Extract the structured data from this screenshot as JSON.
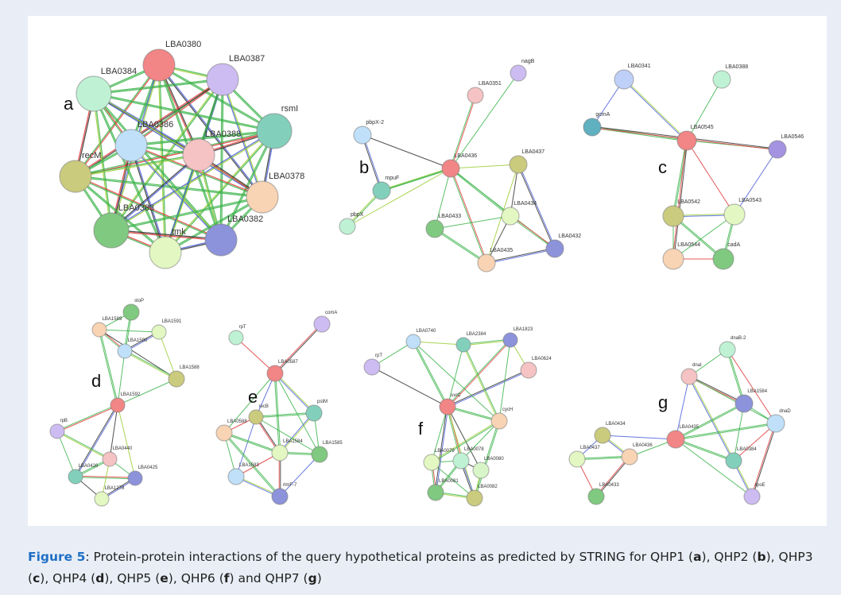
{
  "figure": {
    "panels": [
      {
        "letter": "a",
        "nodes": [
          {
            "label": "LBA0380",
            "color": "#f28585"
          },
          {
            "label": "LBA0387",
            "color": "#cdbcf2"
          },
          {
            "label": "LBA0384",
            "color": "#bff2d4"
          },
          {
            "label": "rsmI",
            "color": "#82d0bb"
          },
          {
            "label": "LBA0386",
            "color": "#bfe0f8"
          },
          {
            "label": "recM",
            "color": "#cbcb7e"
          },
          {
            "label": "LBA0388",
            "color": "#f5c3c3"
          },
          {
            "label": "LBA0378",
            "color": "#f8d3b4"
          },
          {
            "label": "LBA0383",
            "color": "#80c980"
          },
          {
            "label": "tmk",
            "color": "#e2f7c2"
          },
          {
            "label": "LBA0382",
            "color": "#8c93da"
          }
        ]
      },
      {
        "letter": "b",
        "nodes": [
          {
            "label": "nagB",
            "color": "#cdbcf2"
          },
          {
            "label": "LBA0351",
            "color": "#f5c3c3"
          },
          {
            "label": "pbpX-2",
            "color": "#bfe0f8"
          },
          {
            "label": "LBA0436",
            "color": "#f28585"
          },
          {
            "label": "LBA0437",
            "color": "#cbcb7e"
          },
          {
            "label": "mpuF",
            "color": "#82d0bb"
          },
          {
            "label": "pbpX",
            "color": "#bff2d4"
          },
          {
            "label": "LBA0433",
            "color": "#80c980"
          },
          {
            "label": "LBA0434",
            "color": "#e2f7c2"
          },
          {
            "label": "LBA0432",
            "color": "#8c93da"
          },
          {
            "label": "LBA0435",
            "color": "#f8d3b4"
          }
        ]
      },
      {
        "letter": "c",
        "nodes": [
          {
            "label": "LBA0341",
            "color": "#bfd0f8"
          },
          {
            "label": "LBA0388",
            "color": "#bff2d4"
          },
          {
            "label": "gcmA",
            "color": "#5fb0c0"
          },
          {
            "label": "LBA0545",
            "color": "#f28585"
          },
          {
            "label": "LBA0546",
            "color": "#a493e0"
          },
          {
            "label": "LBA0542",
            "color": "#cbcb7e"
          },
          {
            "label": "LBA0543",
            "color": "#e2f7c2"
          },
          {
            "label": "LBA0544",
            "color": "#f8d3b4"
          },
          {
            "label": "cadA",
            "color": "#80c980"
          }
        ]
      },
      {
        "letter": "d",
        "nodes": [
          {
            "label": "stoP",
            "color": "#80c980"
          },
          {
            "label": "LBA1589",
            "color": "#f8d3b4"
          },
          {
            "label": "LBA1591",
            "color": "#e2f7c2"
          },
          {
            "label": "LBA1590",
            "color": "#bfe0f8"
          },
          {
            "label": "LBA1588",
            "color": "#cbcb7e"
          },
          {
            "label": "LBA1592",
            "color": "#f28585"
          },
          {
            "label": "rpB",
            "color": "#cdbcf2"
          },
          {
            "label": "LBA0440",
            "color": "#f5c3c3"
          },
          {
            "label": "LBA0426",
            "color": "#82d0bb"
          },
          {
            "label": "LBA0425",
            "color": "#8c93da"
          },
          {
            "label": "LBA1278",
            "color": "#e2f7c2"
          }
        ]
      },
      {
        "letter": "e",
        "nodes": [
          {
            "label": "rpT",
            "color": "#bff2d4"
          },
          {
            "label": "comA",
            "color": "#cdbcf2"
          },
          {
            "label": "LBA0587",
            "color": "#f28585"
          },
          {
            "label": "recB",
            "color": "#cbcb7e"
          },
          {
            "label": "pstM",
            "color": "#82d0bb"
          },
          {
            "label": "LBA0588",
            "color": "#f8d3b4"
          },
          {
            "label": "LBA1584",
            "color": "#e2f7c2"
          },
          {
            "label": "LBA1585",
            "color": "#80c980"
          },
          {
            "label": "LBA1583",
            "color": "#bfe0f8"
          },
          {
            "label": "rlmF-7",
            "color": "#8c93da"
          }
        ]
      },
      {
        "letter": "f",
        "nodes": [
          {
            "label": "LBA0740",
            "color": "#bfe0f8"
          },
          {
            "label": "LBA2384",
            "color": "#82d0bb"
          },
          {
            "label": "LBA1823",
            "color": "#8c93da"
          },
          {
            "label": "rpT",
            "color": "#cdbcf2"
          },
          {
            "label": "LBA0624",
            "color": "#f5c3c3"
          },
          {
            "label": "uvrC",
            "color": "#f28585"
          },
          {
            "label": "cycH",
            "color": "#f8d3b4"
          },
          {
            "label": "LBA0079",
            "color": "#e2f7c2"
          },
          {
            "label": "LBA0078",
            "color": "#bff2d4"
          },
          {
            "label": "LBA0080",
            "color": "#d8f5c8"
          },
          {
            "label": "LBA0081",
            "color": "#80c980"
          },
          {
            "label": "LBA0082",
            "color": "#cbcb7e"
          }
        ]
      },
      {
        "letter": "g",
        "nodes": [
          {
            "label": "dnaB-2",
            "color": "#bff2d4"
          },
          {
            "label": "dnaI",
            "color": "#f5c3c3"
          },
          {
            "label": "LBA1584",
            "color": "#8c93da"
          },
          {
            "label": "dnaD",
            "color": "#bfe0f8"
          },
          {
            "label": "LBA0434",
            "color": "#cbcb7e"
          },
          {
            "label": "LBA0435",
            "color": "#f28585"
          },
          {
            "label": "LBA0437",
            "color": "#e2f7c2"
          },
          {
            "label": "LBA0436",
            "color": "#f8d3b4"
          },
          {
            "label": "LBA0384",
            "color": "#82d0bb"
          },
          {
            "label": "LBA0433",
            "color": "#80c980"
          },
          {
            "label": "rpoE",
            "color": "#cdbcf2"
          }
        ]
      }
    ],
    "caption": {
      "label": "Figure 5",
      "segments": [
        ": Protein-protein interactions of the query hypothetical proteins as predicted by STRING for QHP1 (",
        "a",
        "), QHP2 (",
        "b",
        "), QHP3 (",
        "c",
        "), QHP4 (",
        "d",
        "), QHP5 (",
        "e",
        "), QHP6 (",
        "f",
        ") and QHP7 (",
        "g",
        ")"
      ]
    }
  }
}
